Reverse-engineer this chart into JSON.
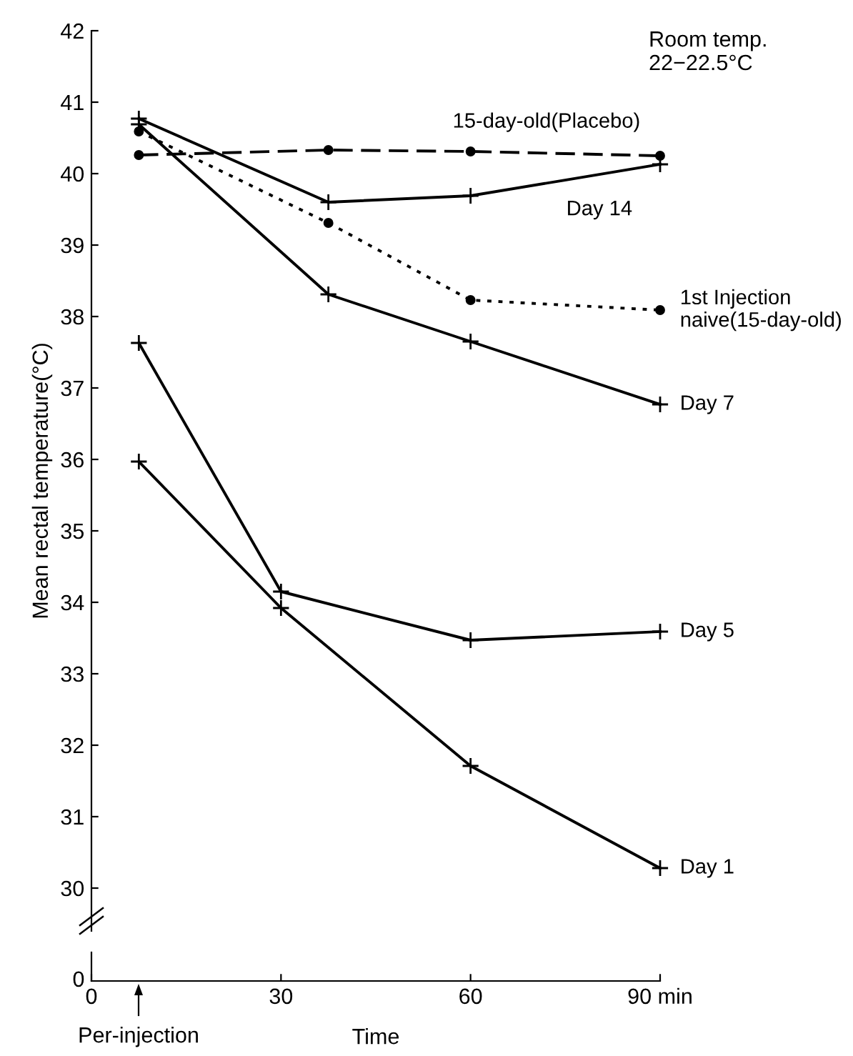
{
  "chart_data": {
    "type": "line",
    "xlabel": "Time",
    "ylabel": "Mean rectal temperature(°C)",
    "xlim": [
      0,
      90
    ],
    "xticks": [
      0,
      30,
      60,
      {
        "value": 90,
        "label": "90 min"
      }
    ],
    "ylim": [
      29.4,
      42
    ],
    "yticks": [
      30,
      31,
      32,
      33,
      34,
      35,
      36,
      37,
      38,
      39,
      40,
      41,
      42
    ],
    "grid": false,
    "legend": false,
    "annotations": [
      "Room temp.\n22−22.5°C",
      "0",
      "Per-injection"
    ],
    "series": [
      {
        "name": "15-day-old(Placebo)",
        "color": "#000000",
        "marker": "circle",
        "line_style": "dashed",
        "x": [
          7.5,
          37.5,
          60,
          90
        ],
        "values": [
          40.26,
          40.33,
          40.31,
          40.25
        ]
      },
      {
        "name": "Day 14",
        "color": "#000000",
        "marker": "cross",
        "line_style": "solid",
        "x": [
          7.5,
          37.5,
          60,
          90
        ],
        "values": [
          40.77,
          39.6,
          39.69,
          40.13
        ]
      },
      {
        "name": "1st Injection\nnaive(15-day-old)",
        "color": "#000000",
        "marker": "circle",
        "line_style": "dotted",
        "x": [
          7.5,
          37.5,
          60,
          90
        ],
        "values": [
          40.59,
          39.31,
          38.23,
          38.09
        ]
      },
      {
        "name": "Day 7",
        "color": "#000000",
        "marker": "cross",
        "line_style": "solid",
        "x": [
          7.5,
          37.5,
          60,
          90
        ],
        "values": [
          40.69,
          38.31,
          37.65,
          36.77
        ]
      },
      {
        "name": "Day 5",
        "color": "#000000",
        "marker": "cross",
        "line_style": "solid",
        "x": [
          7.5,
          30,
          60,
          90
        ],
        "values": [
          37.63,
          34.15,
          33.47,
          33.59
        ]
      },
      {
        "name": "Day 1",
        "color": "#000000",
        "marker": "cross",
        "line_style": "solid",
        "x": [
          7.5,
          30,
          60,
          90
        ],
        "values": [
          35.97,
          33.92,
          31.71,
          30.28
        ]
      }
    ]
  }
}
